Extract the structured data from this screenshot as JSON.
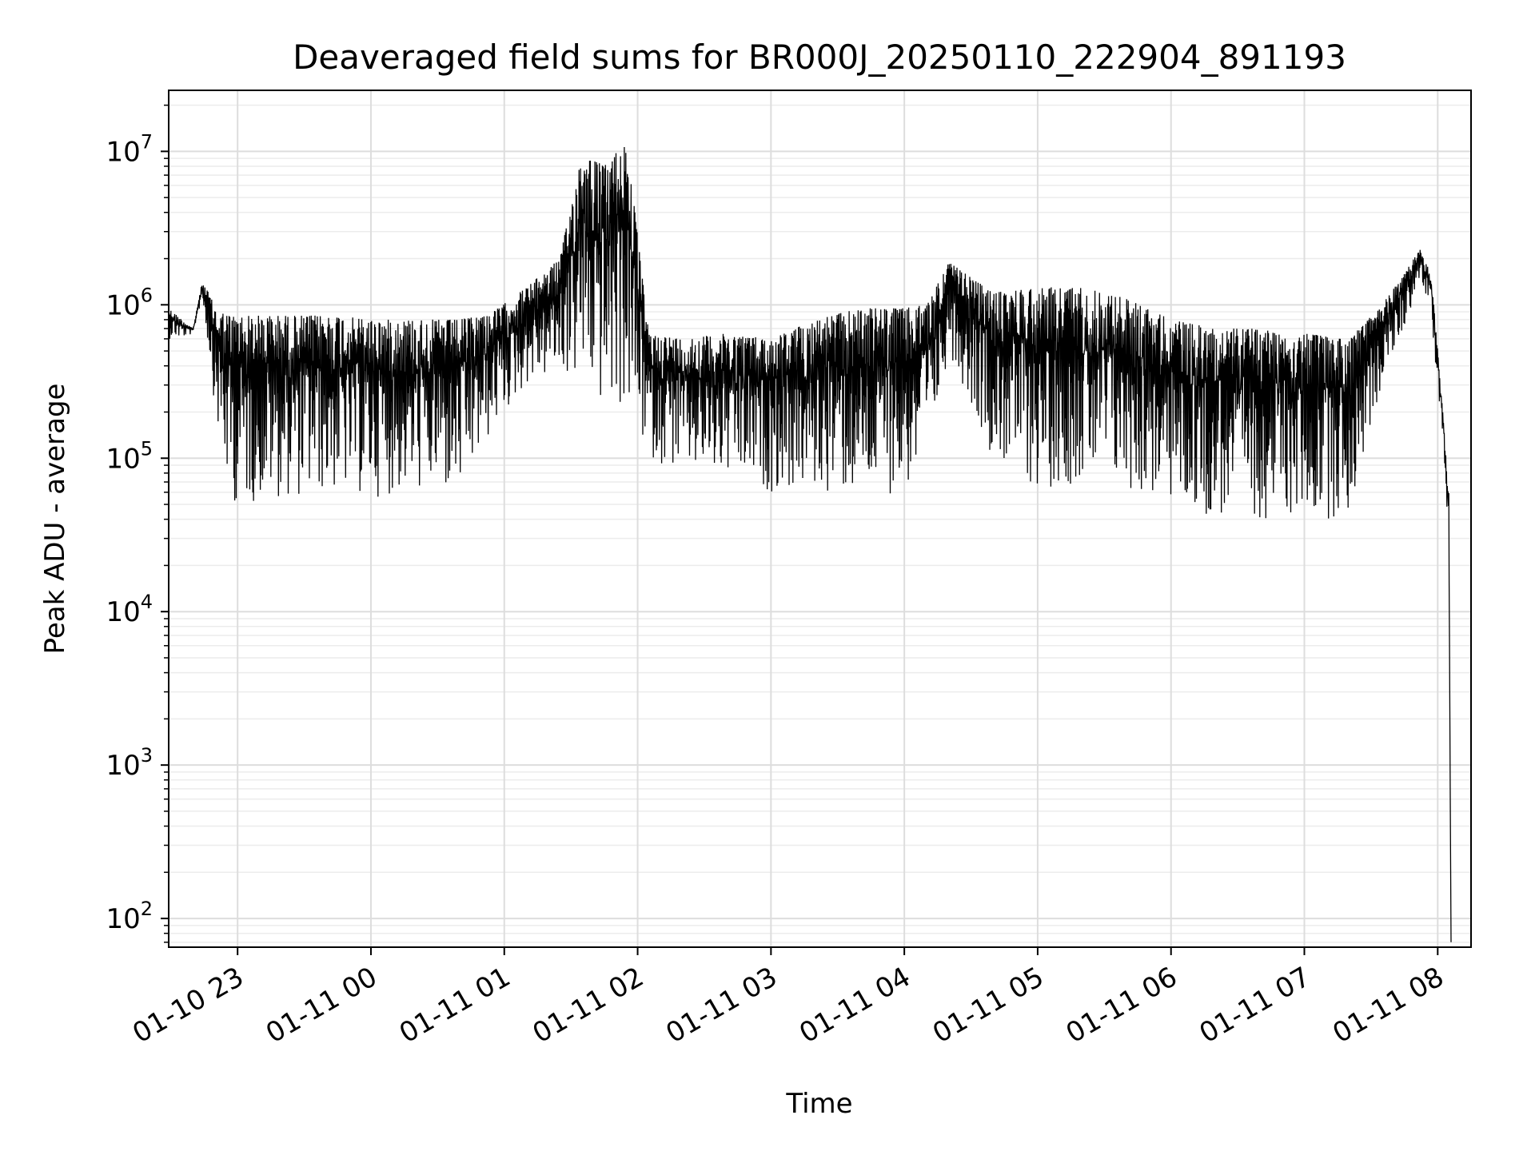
{
  "chart_data": {
    "type": "line",
    "title": "Deaveraged field sums for BR000J_20250110_222904_891193",
    "xlabel": "Time",
    "ylabel": "Peak ADU - average",
    "yscale": "log",
    "ylim": [
      65,
      25000000
    ],
    "xlim": [
      "2025-01-10 22:29",
      "2025-01-11 08:15"
    ],
    "grid": true,
    "line_color": "#000000",
    "x_tick_labels": [
      "01-10 23",
      "01-11 00",
      "01-11 01",
      "01-11 02",
      "01-11 03",
      "01-11 04",
      "01-11 05",
      "01-11 06",
      "01-11 07",
      "01-11 08"
    ],
    "x_ticks": [
      "2025-01-10 23:00",
      "2025-01-11 00:00",
      "2025-01-11 01:00",
      "2025-01-11 02:00",
      "2025-01-11 03:00",
      "2025-01-11 04:00",
      "2025-01-11 05:00",
      "2025-01-11 06:00",
      "2025-01-11 07:00",
      "2025-01-11 08:00"
    ],
    "y_ticks": [
      {
        "value": 100,
        "base": "10",
        "exp": "2"
      },
      {
        "value": 1000,
        "base": "10",
        "exp": "3"
      },
      {
        "value": 10000,
        "base": "10",
        "exp": "4"
      },
      {
        "value": 100000,
        "base": "10",
        "exp": "5"
      },
      {
        "value": 1000000,
        "base": "10",
        "exp": "6"
      },
      {
        "value": 10000000,
        "base": "10",
        "exp": "7"
      }
    ],
    "series": [
      {
        "x": [
          "2025-01-10 22:29",
          "2025-01-10 22:35",
          "2025-01-10 22:40",
          "2025-01-10 22:44",
          "2025-01-10 22:47",
          "2025-01-10 22:50",
          "2025-01-10 22:53",
          "2025-01-10 22:57",
          "2025-01-10 23:05",
          "2025-01-10 23:15",
          "2025-01-10 23:30",
          "2025-01-10 23:45",
          "2025-01-11 00:00",
          "2025-01-11 00:20",
          "2025-01-11 00:40",
          "2025-01-11 00:55",
          "2025-01-11 01:10",
          "2025-01-11 01:25",
          "2025-01-11 01:35",
          "2025-01-11 01:45",
          "2025-01-11 01:55",
          "2025-01-11 02:05",
          "2025-01-11 02:20",
          "2025-01-11 02:40",
          "2025-01-11 03:00",
          "2025-01-11 03:20",
          "2025-01-11 03:40",
          "2025-01-11 04:00",
          "2025-01-11 04:10",
          "2025-01-11 04:20",
          "2025-01-11 04:40",
          "2025-01-11 05:00",
          "2025-01-11 05:20",
          "2025-01-11 05:40",
          "2025-01-11 06:00",
          "2025-01-11 06:20",
          "2025-01-11 06:40",
          "2025-01-11 07:00",
          "2025-01-11 07:20",
          "2025-01-11 07:35",
          "2025-01-11 07:45",
          "2025-01-11 07:52",
          "2025-01-11 07:57",
          "2025-01-11 08:00",
          "2025-01-11 08:03",
          "2025-01-11 08:05",
          "2025-01-11 08:06"
        ],
        "high": [
          950000,
          800000,
          700000,
          1400000,
          1200000,
          950000,
          900000,
          850000,
          850000,
          850000,
          850000,
          850000,
          800000,
          800000,
          800000,
          900000,
          1300000,
          2000000,
          10000000,
          8000000,
          12000000,
          650000,
          600000,
          650000,
          600000,
          800000,
          950000,
          950000,
          1000000,
          1900000,
          1200000,
          1300000,
          1300000,
          1100000,
          800000,
          700000,
          700000,
          650000,
          600000,
          1000000,
          1600000,
          2300000,
          1600000,
          500000,
          150000,
          60000,
          70
        ],
        "low": [
          600000,
          600000,
          650000,
          1100000,
          500000,
          200000,
          90000,
          50000,
          50000,
          55000,
          55000,
          60000,
          55000,
          60000,
          55000,
          150000,
          300000,
          350000,
          300000,
          200000,
          200000,
          100000,
          80000,
          70000,
          60000,
          60000,
          55000,
          60000,
          80000,
          500000,
          100000,
          60000,
          70000,
          60000,
          50000,
          40000,
          40000,
          40000,
          40000,
          300000,
          700000,
          1500000,
          800000,
          300000,
          100000,
          20000,
          70
        ]
      }
    ]
  }
}
